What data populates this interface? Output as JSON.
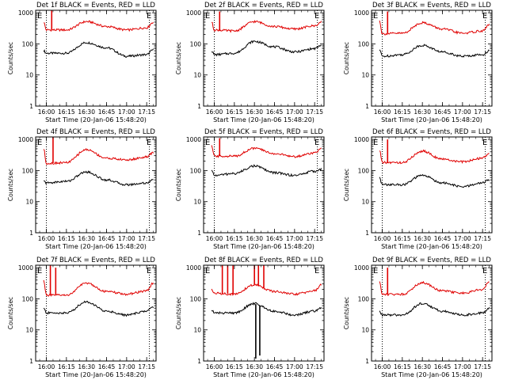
{
  "figure": {
    "xlabel": "Start Time (20-Jan-06 15:48:20)",
    "ylabel": "Counts/sec",
    "x_ticks": [
      "16:00",
      "16:15",
      "16:30",
      "16:45",
      "17:00",
      "17:15"
    ],
    "y_ticks": [
      "1",
      "10",
      "100",
      "1000"
    ],
    "corner_mark": "E"
  },
  "colors": {
    "events": "#000000",
    "lld": "#e00000"
  },
  "chart_data": [
    {
      "type": "line",
      "title": "Det 1f BLACK = Events, RED = LLD",
      "x": [
        "15:58",
        "16:00",
        "16:15",
        "16:30",
        "16:45",
        "17:00",
        "17:15",
        "17:20"
      ],
      "xlim": [
        "15:52",
        "17:22"
      ],
      "ylim": [
        1,
        1200
      ],
      "yscale": "log",
      "dotted_vlines": [
        "16:00",
        "17:17"
      ],
      "series": [
        {
          "name": "Events",
          "color": "black",
          "values": [
            60,
            50,
            50,
            110,
            75,
            40,
            45,
            65
          ]
        },
        {
          "name": "LLD",
          "color": "red",
          "values": [
            500,
            280,
            280,
            520,
            360,
            280,
            330,
            500
          ]
        }
      ],
      "spikes": [
        {
          "series": "LLD",
          "x": "16:04",
          "value": 1200
        }
      ]
    },
    {
      "type": "line",
      "title": "Det 2f BLACK = Events, RED = LLD",
      "x": [
        "15:58",
        "16:00",
        "16:15",
        "16:30",
        "16:45",
        "17:00",
        "17:15",
        "17:20"
      ],
      "xlim": [
        "15:52",
        "17:22"
      ],
      "ylim": [
        1,
        1200
      ],
      "yscale": "log",
      "dotted_vlines": [
        "16:00",
        "17:17"
      ],
      "series": [
        {
          "name": "Events",
          "color": "black",
          "values": [
            60,
            45,
            50,
            120,
            80,
            55,
            70,
            90
          ]
        },
        {
          "name": "LLD",
          "color": "red",
          "values": [
            500,
            280,
            260,
            520,
            360,
            300,
            380,
            500
          ]
        }
      ],
      "spikes": [
        {
          "series": "LLD",
          "x": "16:04",
          "value": 1100
        }
      ]
    },
    {
      "type": "line",
      "title": "Det 3f BLACK = Events, RED = LLD",
      "x": [
        "15:58",
        "16:00",
        "16:15",
        "16:30",
        "16:45",
        "17:00",
        "17:15",
        "17:20"
      ],
      "xlim": [
        "15:52",
        "17:22"
      ],
      "ylim": [
        1,
        1200
      ],
      "yscale": "log",
      "dotted_vlines": [
        "16:00",
        "17:17"
      ],
      "series": [
        {
          "name": "Events",
          "color": "black",
          "values": [
            65,
            40,
            45,
            90,
            55,
            40,
            45,
            60
          ]
        },
        {
          "name": "LLD",
          "color": "red",
          "values": [
            550,
            210,
            220,
            480,
            300,
            220,
            260,
            420
          ]
        }
      ],
      "spikes": [
        {
          "series": "LLD",
          "x": "16:04",
          "value": 1100
        }
      ]
    },
    {
      "type": "line",
      "title": "Det 4f BLACK = Events, RED = LLD",
      "x": [
        "15:58",
        "16:00",
        "16:15",
        "16:30",
        "16:45",
        "17:00",
        "17:15",
        "17:20"
      ],
      "xlim": [
        "15:52",
        "17:22"
      ],
      "ylim": [
        1,
        1200
      ],
      "yscale": "log",
      "dotted_vlines": [
        "16:00",
        "17:17"
      ],
      "series": [
        {
          "name": "Events",
          "color": "black",
          "values": [
            45,
            40,
            45,
            90,
            50,
            35,
            40,
            50
          ]
        },
        {
          "name": "LLD",
          "color": "red",
          "values": [
            500,
            170,
            180,
            470,
            250,
            220,
            270,
            380
          ]
        }
      ],
      "spikes": [
        {
          "series": "LLD",
          "x": "16:05",
          "value": 1200
        }
      ]
    },
    {
      "type": "line",
      "title": "Det 5f BLACK = Events, RED = LLD",
      "x": [
        "15:58",
        "16:00",
        "16:15",
        "16:30",
        "16:45",
        "17:00",
        "17:15",
        "17:20"
      ],
      "xlim": [
        "15:52",
        "17:22"
      ],
      "ylim": [
        1,
        1200
      ],
      "yscale": "log",
      "dotted_vlines": [
        "16:00",
        "17:17"
      ],
      "series": [
        {
          "name": "Events",
          "color": "black",
          "values": [
            100,
            70,
            80,
            140,
            85,
            70,
            95,
            110
          ]
        },
        {
          "name": "LLD",
          "color": "red",
          "values": [
            600,
            290,
            290,
            520,
            350,
            280,
            370,
            500
          ]
        }
      ],
      "spikes": [
        {
          "series": "LLD",
          "x": "16:04",
          "value": 1100
        }
      ]
    },
    {
      "type": "line",
      "title": "Det 6f BLACK = Events, RED = LLD",
      "x": [
        "15:58",
        "16:00",
        "16:15",
        "16:30",
        "16:45",
        "17:00",
        "17:15",
        "17:20"
      ],
      "xlim": [
        "15:52",
        "17:22"
      ],
      "ylim": [
        1,
        1200
      ],
      "yscale": "log",
      "dotted_vlines": [
        "16:00",
        "17:17"
      ],
      "series": [
        {
          "name": "Events",
          "color": "black",
          "values": [
            60,
            35,
            35,
            70,
            40,
            30,
            40,
            50
          ]
        },
        {
          "name": "LLD",
          "color": "red",
          "values": [
            450,
            180,
            180,
            420,
            230,
            190,
            250,
            360
          ]
        }
      ],
      "spikes": [
        {
          "series": "LLD",
          "x": "16:04",
          "value": 1000
        }
      ]
    },
    {
      "type": "line",
      "title": "Det 7f BLACK = Events, RED = LLD",
      "x": [
        "15:58",
        "16:00",
        "16:15",
        "16:30",
        "16:45",
        "17:00",
        "17:15",
        "17:20"
      ],
      "xlim": [
        "15:52",
        "17:22"
      ],
      "ylim": [
        1,
        1200
      ],
      "yscale": "log",
      "dotted_vlines": [
        "16:00",
        "17:17"
      ],
      "series": [
        {
          "name": "Events",
          "color": "black",
          "values": [
            50,
            35,
            35,
            80,
            40,
            30,
            40,
            55
          ]
        },
        {
          "name": "LLD",
          "color": "red",
          "values": [
            400,
            130,
            130,
            320,
            170,
            140,
            180,
            320
          ]
        }
      ],
      "spikes": [
        {
          "series": "LLD",
          "x": "16:03",
          "value": 1200
        },
        {
          "series": "LLD",
          "x": "16:07",
          "value": 1000
        }
      ]
    },
    {
      "type": "line",
      "title": "Det 8f BLACK = Events, RED = LLD",
      "x": [
        "15:58",
        "16:00",
        "16:15",
        "16:30",
        "16:45",
        "17:00",
        "17:15",
        "17:20"
      ],
      "xlim": [
        "15:52",
        "17:22"
      ],
      "ylim": [
        1,
        1200
      ],
      "yscale": "log",
      "dotted_vlines": [],
      "series": [
        {
          "name": "Events",
          "color": "black",
          "values": [
            45,
            35,
            35,
            70,
            40,
            30,
            40,
            50
          ]
        },
        {
          "name": "LLD",
          "color": "red",
          "values": [
            200,
            150,
            140,
            280,
            170,
            140,
            180,
            280
          ]
        }
      ],
      "spikes": [
        {
          "series": "LLD",
          "x": "16:06",
          "value": 1200
        },
        {
          "series": "LLD",
          "x": "16:10",
          "value": 1200
        },
        {
          "series": "LLD",
          "x": "16:14",
          "value": 1200
        },
        {
          "series": "LLD",
          "x": "16:30",
          "value": 1200
        },
        {
          "series": "LLD",
          "x": "16:33",
          "value": 1200
        },
        {
          "series": "LLD",
          "x": "16:37",
          "value": 1200
        },
        {
          "series": "Events",
          "x": "16:31",
          "value": 1.2
        },
        {
          "series": "Events",
          "x": "16:34",
          "value": 1.5
        }
      ]
    },
    {
      "type": "line",
      "title": "Det 9f BLACK = Events, RED = LLD",
      "x": [
        "15:58",
        "16:00",
        "16:15",
        "16:30",
        "16:45",
        "17:00",
        "17:15",
        "17:20"
      ],
      "xlim": [
        "15:52",
        "17:22"
      ],
      "ylim": [
        1,
        1200
      ],
      "yscale": "log",
      "dotted_vlines": [
        "16:00",
        "17:17"
      ],
      "series": [
        {
          "name": "Events",
          "color": "black",
          "values": [
            40,
            30,
            30,
            70,
            40,
            30,
            35,
            50
          ]
        },
        {
          "name": "LLD",
          "color": "red",
          "values": [
            350,
            140,
            140,
            330,
            180,
            150,
            200,
            340
          ]
        }
      ],
      "spikes": [
        {
          "series": "LLD",
          "x": "16:04",
          "value": 1000
        }
      ]
    }
  ]
}
